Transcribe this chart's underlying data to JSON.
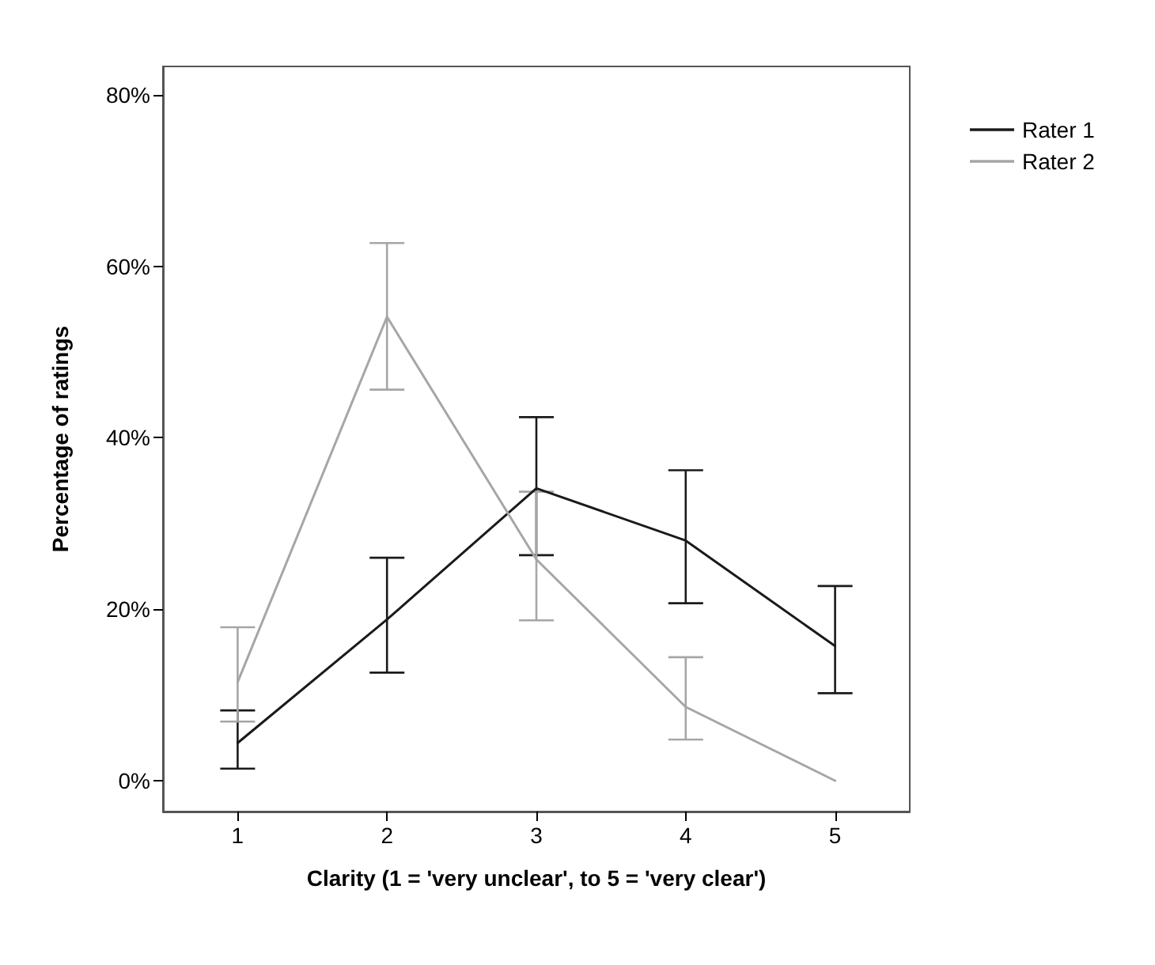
{
  "chart_data": {
    "type": "line",
    "xlabel": "Clarity (1 = 'very unclear', to 5 = 'very clear')",
    "ylabel": "Percentage of ratings",
    "categories": [
      "1",
      "2",
      "3",
      "4",
      "5"
    ],
    "series": [
      {
        "name": "Rater 1",
        "color": "#1a1a1a",
        "values": [
          4.4,
          18.8,
          34.1,
          28.0,
          15.7
        ],
        "errors": [
          [
            1.4,
            8.2
          ],
          [
            12.6,
            26.0
          ],
          [
            26.3,
            42.4
          ],
          [
            20.7,
            36.2
          ],
          [
            10.2,
            22.7
          ]
        ]
      },
      {
        "name": "Rater 2",
        "color": "#a6a6a6",
        "values": [
          11.5,
          54.1,
          25.8,
          8.6,
          0
        ],
        "errors": [
          [
            6.9,
            17.9
          ],
          [
            45.6,
            62.7
          ],
          [
            18.7,
            33.7
          ],
          [
            4.8,
            14.4
          ],
          null
        ]
      }
    ],
    "ylim": [
      -3.6,
      83.3
    ],
    "yticks": [
      {
        "value": 0,
        "label": "0%"
      },
      {
        "value": 20,
        "label": "20%"
      },
      {
        "value": 40,
        "label": "40%"
      },
      {
        "value": 60,
        "label": "60%"
      },
      {
        "value": 80,
        "label": "80%"
      }
    ],
    "grid": false,
    "legend": "top right",
    "marker": "none",
    "line_style": "solid"
  }
}
